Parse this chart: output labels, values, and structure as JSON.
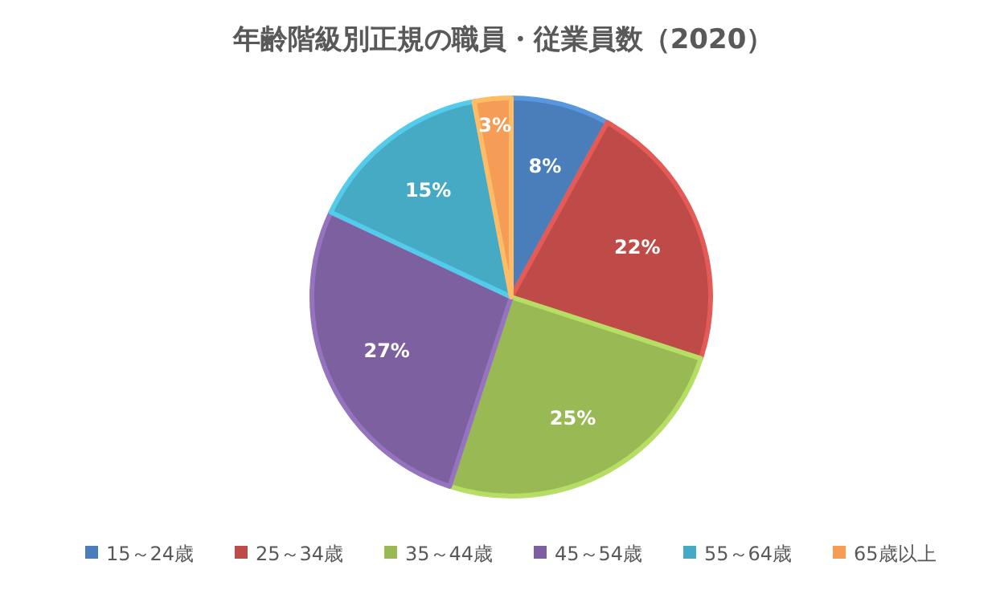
{
  "chart_data": {
    "type": "pie",
    "title": "年齢階級別正規の職員・従業員数（2020）",
    "categories": [
      "15～24歳",
      "25～34歳",
      "35～44歳",
      "45～54歳",
      "55～64歳",
      "65歳以上"
    ],
    "values": [
      8,
      22,
      25,
      27,
      15,
      3
    ],
    "colors": [
      "#4a7ebb",
      "#be4b48",
      "#98b954",
      "#7d60a0",
      "#46aac5",
      "#f59d56"
    ],
    "value_labels": [
      "8%",
      "22%",
      "25%",
      "27%",
      "15%",
      "3%"
    ],
    "legend": "bottom"
  }
}
